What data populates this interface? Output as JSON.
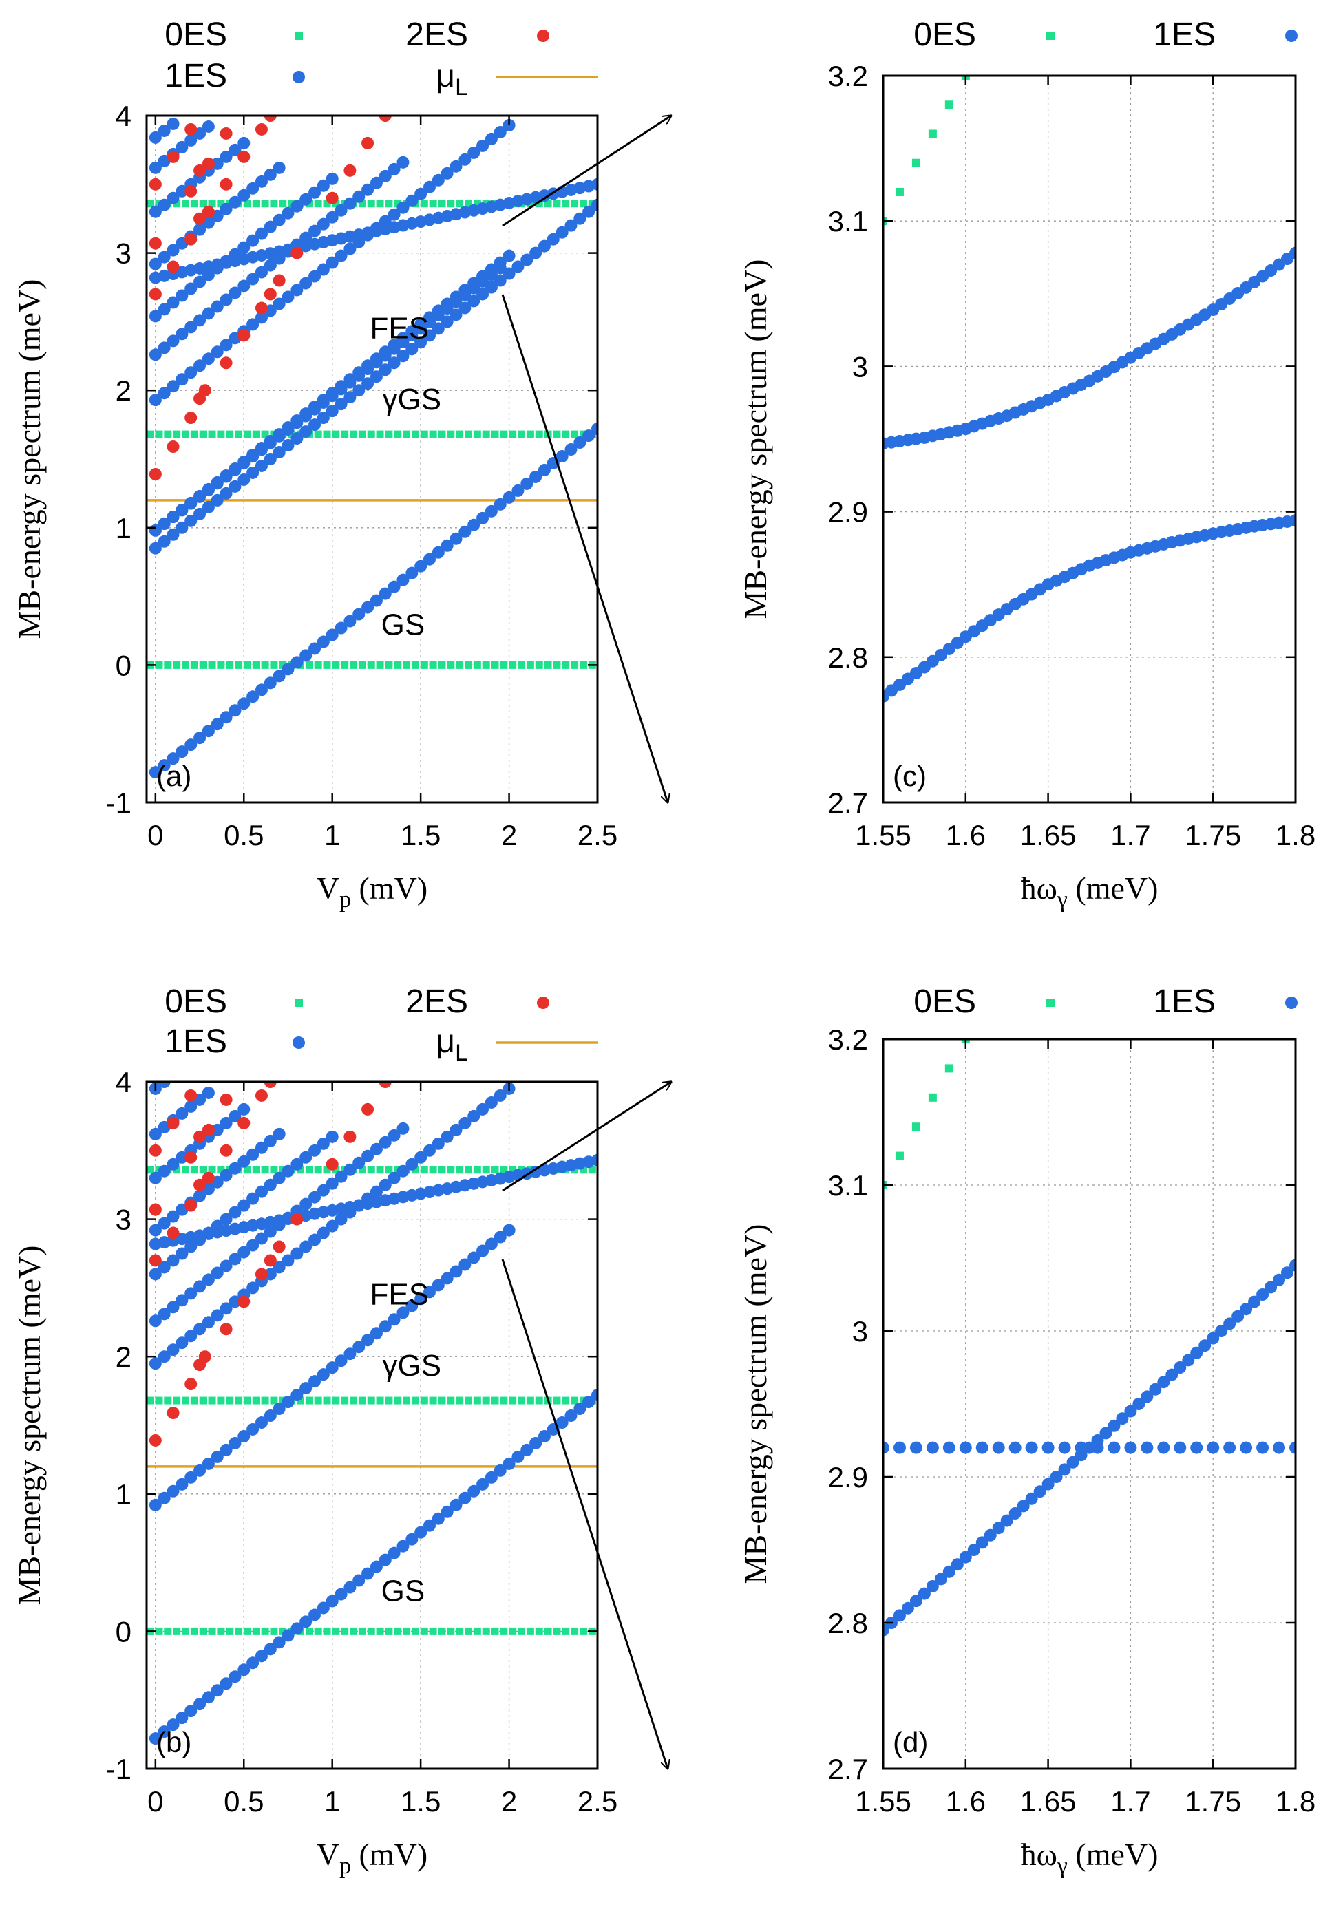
{
  "colors": {
    "es0": "#1ee08c",
    "es1": "#2a6fe0",
    "es2": "#e8302a",
    "muL": "#e3a020",
    "grid": "#9a9a9a"
  },
  "chart_data": [
    {
      "panel": "(a)",
      "type": "scatter",
      "xlabel": "V",
      "xlabel_sub": "p",
      "xlabel_unit": " (mV)",
      "ylabel": "MB-energy spectrum (meV)",
      "xlim": [
        -0.05,
        2.5
      ],
      "ylim": [
        -1,
        4
      ],
      "xticks": [
        "0",
        "0.5",
        "1",
        "1.5",
        "2",
        "2.5"
      ],
      "xtick_values": [
        0,
        0.5,
        1,
        1.5,
        2,
        2.5
      ],
      "yticks": [
        "-1",
        "0",
        "1",
        "2",
        "3",
        "4"
      ],
      "ytick_values": [
        -1,
        0,
        1,
        2,
        3,
        4
      ],
      "legend": [
        {
          "label": "0ES",
          "marker": "square"
        },
        {
          "label": "2ES",
          "marker": "circle"
        },
        {
          "label": "1ES",
          "marker": "circle"
        },
        {
          "label": "μ",
          "sub": "L",
          "marker": "line"
        }
      ],
      "annotations": [
        "FES",
        "γGS",
        "GS"
      ],
      "mu_L": 1.2,
      "es0_levels": [
        0.0,
        1.68,
        3.36
      ],
      "series_1ES": [
        {
          "intercept": -0.78,
          "x_end": 2.5,
          "offset": 0.0
        },
        {
          "intercept": 0.85,
          "x_end": 2.5,
          "offset": 0.0
        },
        {
          "intercept": 0.98,
          "x_end": 2.0,
          "offset": 0.0
        },
        {
          "intercept": 1.93,
          "x_end": 2.0,
          "offset": 0.0
        },
        {
          "intercept": 2.26,
          "x_end": 1.4,
          "offset": 0.0
        },
        {
          "intercept": 2.54,
          "x_end": 1.0,
          "offset": 0.0
        },
        {
          "intercept": 2.92,
          "x_end": 0.7,
          "offset": 0.0
        },
        {
          "intercept": 3.3,
          "x_end": 0.5,
          "offset": 0.0
        },
        {
          "intercept": 3.62,
          "x_end": 0.3,
          "offset": 0.0
        },
        {
          "intercept": 3.84,
          "x_end": 0.1,
          "offset": 0.0
        }
      ],
      "series_1ES_upper": {
        "x": [
          0.0,
          2.5
        ],
        "y": [
          2.82,
          3.5
        ],
        "note": "pair of lines entering zoom"
      },
      "series_2ES": [
        [
          0.0,
          1.39
        ],
        [
          0.1,
          1.59
        ],
        [
          0.2,
          1.8
        ],
        [
          0.25,
          1.94
        ],
        [
          0.28,
          2.0
        ],
        [
          0.4,
          2.2
        ],
        [
          0.5,
          2.4
        ],
        [
          0.6,
          2.6
        ],
        [
          0.65,
          2.7
        ],
        [
          0.7,
          2.8
        ],
        [
          0.8,
          3.0
        ],
        [
          1.0,
          3.4
        ],
        [
          1.1,
          3.6
        ],
        [
          1.2,
          3.8
        ],
        [
          1.3,
          4.0
        ],
        [
          0.0,
          2.7
        ],
        [
          0.1,
          2.9
        ],
        [
          0.2,
          3.1
        ],
        [
          0.25,
          3.25
        ],
        [
          0.3,
          3.3
        ],
        [
          0.4,
          3.5
        ],
        [
          0.5,
          3.7
        ],
        [
          0.6,
          3.9
        ],
        [
          0.65,
          4.0
        ],
        [
          0.0,
          3.07
        ],
        [
          0.0,
          3.5
        ],
        [
          0.1,
          3.7
        ],
        [
          0.2,
          3.9
        ],
        [
          0.3,
          3.65
        ],
        [
          0.25,
          3.6
        ],
        [
          0.4,
          3.87
        ],
        [
          0.2,
          3.45
        ]
      ]
    },
    {
      "panel": "(b)",
      "type": "scatter",
      "xlabel": "V",
      "xlabel_sub": "p",
      "xlabel_unit": " (mV)",
      "ylabel": "MB-energy spectrum (meV)",
      "xlim": [
        -0.05,
        2.5
      ],
      "ylim": [
        -1,
        4
      ],
      "xticks": [
        "0",
        "0.5",
        "1",
        "1.5",
        "2",
        "2.5"
      ],
      "xtick_values": [
        0,
        0.5,
        1,
        1.5,
        2,
        2.5
      ],
      "yticks": [
        "-1",
        "0",
        "1",
        "2",
        "3",
        "4"
      ],
      "ytick_values": [
        -1,
        0,
        1,
        2,
        3,
        4
      ],
      "legend": [
        {
          "label": "0ES",
          "marker": "square"
        },
        {
          "label": "2ES",
          "marker": "circle"
        },
        {
          "label": "1ES",
          "marker": "circle"
        },
        {
          "label": "μ",
          "sub": "L",
          "marker": "line"
        }
      ],
      "annotations": [
        "FES",
        "γGS",
        "GS"
      ],
      "mu_L": 1.2,
      "es0_levels": [
        0.0,
        1.68,
        3.36
      ],
      "series_1ES": [
        {
          "intercept": -0.78,
          "x_end": 2.5,
          "offset": 0.0
        },
        {
          "intercept": 0.92,
          "x_end": 2.0,
          "offset": 0.0
        },
        {
          "intercept": 1.95,
          "x_end": 2.0,
          "offset": 0.0
        },
        {
          "intercept": 2.26,
          "x_end": 1.4,
          "offset": 0.0
        },
        {
          "intercept": 2.6,
          "x_end": 1.0,
          "offset": 0.0
        },
        {
          "intercept": 2.92,
          "x_end": 0.7,
          "offset": 0.0
        },
        {
          "intercept": 3.3,
          "x_end": 0.5,
          "offset": 0.0
        },
        {
          "intercept": 3.62,
          "x_end": 0.3,
          "offset": 0.0
        },
        {
          "intercept": 3.95,
          "x_end": 0.05,
          "offset": 0.0
        }
      ],
      "series_1ES_upper": {
        "x": [
          0.0,
          2.5
        ],
        "y": [
          2.82,
          3.43
        ],
        "note": "single line near crossing"
      },
      "series_2ES": [
        [
          0.0,
          1.39
        ],
        [
          0.1,
          1.59
        ],
        [
          0.2,
          1.8
        ],
        [
          0.25,
          1.94
        ],
        [
          0.28,
          2.0
        ],
        [
          0.4,
          2.2
        ],
        [
          0.5,
          2.4
        ],
        [
          0.6,
          2.6
        ],
        [
          0.65,
          2.7
        ],
        [
          0.7,
          2.8
        ],
        [
          0.8,
          3.0
        ],
        [
          1.0,
          3.4
        ],
        [
          1.1,
          3.6
        ],
        [
          1.2,
          3.8
        ],
        [
          1.3,
          4.0
        ],
        [
          0.0,
          2.7
        ],
        [
          0.1,
          2.9
        ],
        [
          0.2,
          3.1
        ],
        [
          0.25,
          3.25
        ],
        [
          0.3,
          3.3
        ],
        [
          0.4,
          3.5
        ],
        [
          0.5,
          3.7
        ],
        [
          0.6,
          3.9
        ],
        [
          0.65,
          4.0
        ],
        [
          0.0,
          3.07
        ],
        [
          0.0,
          3.5
        ],
        [
          0.1,
          3.7
        ],
        [
          0.2,
          3.9
        ],
        [
          0.3,
          3.65
        ],
        [
          0.25,
          3.6
        ],
        [
          0.4,
          3.87
        ],
        [
          0.2,
          3.45
        ]
      ]
    },
    {
      "panel": "(c)",
      "type": "scatter",
      "xlabel": "ħω",
      "xlabel_sub": "γ",
      "xlabel_unit": " (meV)",
      "ylabel": "MB-energy spectrum (meV)",
      "xlim": [
        1.55,
        1.8
      ],
      "ylim": [
        2.7,
        3.2
      ],
      "xticks": [
        "1.55",
        "1.6",
        "1.65",
        "1.7",
        "1.75",
        "1.8"
      ],
      "xtick_values": [
        1.55,
        1.6,
        1.65,
        1.7,
        1.75,
        1.8
      ],
      "yticks": [
        "2.7",
        "2.8",
        "2.9",
        "3",
        "3.1",
        "3.2"
      ],
      "ytick_values": [
        2.7,
        2.8,
        2.9,
        3.0,
        3.1,
        3.2
      ],
      "legend": [
        {
          "label": "0ES",
          "marker": "square"
        },
        {
          "label": "1ES",
          "marker": "circle"
        }
      ],
      "series_0ES": {
        "x": [
          1.55,
          1.56,
          1.57,
          1.58,
          1.59,
          1.6
        ],
        "y": [
          3.1,
          3.12,
          3.14,
          3.16,
          3.18,
          3.2
        ]
      },
      "series_1ES_upper": {
        "x": [
          1.55,
          1.575,
          1.6,
          1.625,
          1.65,
          1.675,
          1.7,
          1.725,
          1.75,
          1.775,
          1.8
        ],
        "y": [
          2.947,
          2.951,
          2.957,
          2.966,
          2.977,
          2.99,
          3.006,
          3.022,
          3.039,
          3.058,
          3.078
        ]
      },
      "series_1ES_lower": {
        "x": [
          1.55,
          1.575,
          1.6,
          1.625,
          1.65,
          1.675,
          1.7,
          1.725,
          1.75,
          1.775,
          1.8
        ],
        "y": [
          2.773,
          2.793,
          2.814,
          2.833,
          2.85,
          2.863,
          2.872,
          2.879,
          2.885,
          2.89,
          2.894
        ]
      }
    },
    {
      "panel": "(d)",
      "type": "scatter",
      "xlabel": "ħω",
      "xlabel_sub": "γ",
      "xlabel_unit": " (meV)",
      "ylabel": "MB-energy spectrum (meV)",
      "xlim": [
        1.55,
        1.8
      ],
      "ylim": [
        2.7,
        3.2
      ],
      "xticks": [
        "1.55",
        "1.6",
        "1.65",
        "1.7",
        "1.75",
        "1.8"
      ],
      "xtick_values": [
        1.55,
        1.6,
        1.65,
        1.7,
        1.75,
        1.8
      ],
      "yticks": [
        "2.7",
        "2.8",
        "2.9",
        "3",
        "3.1",
        "3.2"
      ],
      "ytick_values": [
        2.7,
        2.8,
        2.9,
        3.0,
        3.1,
        3.2
      ],
      "legend": [
        {
          "label": "0ES",
          "marker": "square"
        },
        {
          "label": "1ES",
          "marker": "circle"
        }
      ],
      "series_0ES": {
        "x": [
          1.55,
          1.56,
          1.57,
          1.58,
          1.59,
          1.6
        ],
        "y": [
          3.1,
          3.12,
          3.14,
          3.16,
          3.18,
          3.2
        ]
      },
      "series_1ES_flat": {
        "x": [
          1.55,
          1.8
        ],
        "y": [
          2.92,
          2.92
        ]
      },
      "series_1ES_rising": {
        "x": [
          1.55,
          1.8
        ],
        "y": [
          2.795,
          3.045
        ]
      }
    }
  ]
}
